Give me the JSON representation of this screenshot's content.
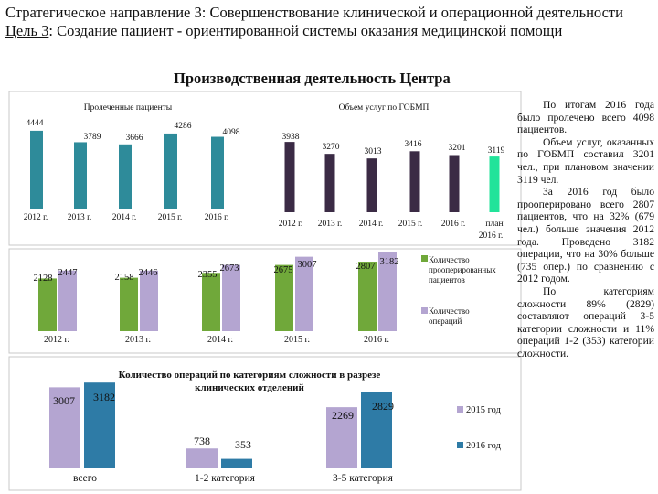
{
  "header": {
    "line1": "Стратегическое направление 3: Совершенствование клинической и операционной деятельности",
    "goal_label": "Цель 3",
    "goal_text": ": Создание пациент - ориентированной системы оказания медицинской помощи",
    "subtitle": "Производственная деятельность Центра"
  },
  "summary": {
    "paragraphs": [
      "По итогам 2016 года было пролечено всего 4098 пациентов.",
      "Объем услуг, оказанных по ГОБМП составил 3201 чел., при плановом значении 3119 чел.",
      "За 2016 год было прооперировано всего 2807 пациентов, что на 32% (679 чел.) больше значения 2012 года. Проведено 3182 операции, что на 30% больше (735 опер.) по сравнению с 2012 годом.",
      "По категориям сложности 89% (2829) составляют операций 3-5 категории сложности и 11% операций 1-2 (353) категории сложности."
    ]
  },
  "colors": {
    "teal": "#2e8b9a",
    "dark_purple": "#3b2b45",
    "plan_green": "#22e39a",
    "olive_green": "#70a83a",
    "lavender": "#b4a5d1",
    "blue": "#2e7ba6"
  },
  "chart_data": [
    {
      "type": "bar",
      "title": "Пролеченные пациенты",
      "categories": [
        "2012 г.",
        "2013 г.",
        "2014 г.",
        "2015 г.",
        "2016 г."
      ],
      "values": [
        4444,
        3789,
        3666,
        4286,
        4098
      ],
      "ylim": [
        0,
        4700
      ]
    },
    {
      "type": "bar",
      "title": "Объем услуг по ГОБМП",
      "categories": [
        "2012 г.",
        "2013 г.",
        "2014 г.",
        "2015 г.",
        "2016 г.",
        "план 2016 г."
      ],
      "values": [
        3938,
        3270,
        3013,
        3416,
        3201,
        3119
      ],
      "ylim": [
        0,
        4200
      ]
    },
    {
      "type": "bar",
      "categories": [
        "2012 г.",
        "2013 г.",
        "2014 г.",
        "2015 г.",
        "2016 г."
      ],
      "series": [
        {
          "name": "Количество прооперированных пациентов",
          "values": [
            2128,
            2158,
            2355,
            2675,
            2807
          ]
        },
        {
          "name": "Количество операций",
          "values": [
            2447,
            2446,
            2673,
            3007,
            3182
          ]
        }
      ],
      "legend_position": "right",
      "ylim": [
        0,
        3400
      ]
    },
    {
      "type": "bar",
      "title": "Количество операций по категориям сложности в разрезе клинических отделений",
      "categories": [
        "всего",
        "1-2 категория",
        "3-5 категория"
      ],
      "series": [
        {
          "name": "2015 год",
          "values": [
            3007,
            738,
            2269
          ]
        },
        {
          "name": "2016 год",
          "values": [
            3182,
            353,
            2829
          ]
        }
      ],
      "legend_position": "right",
      "ylim": [
        0,
        3800
      ]
    }
  ]
}
